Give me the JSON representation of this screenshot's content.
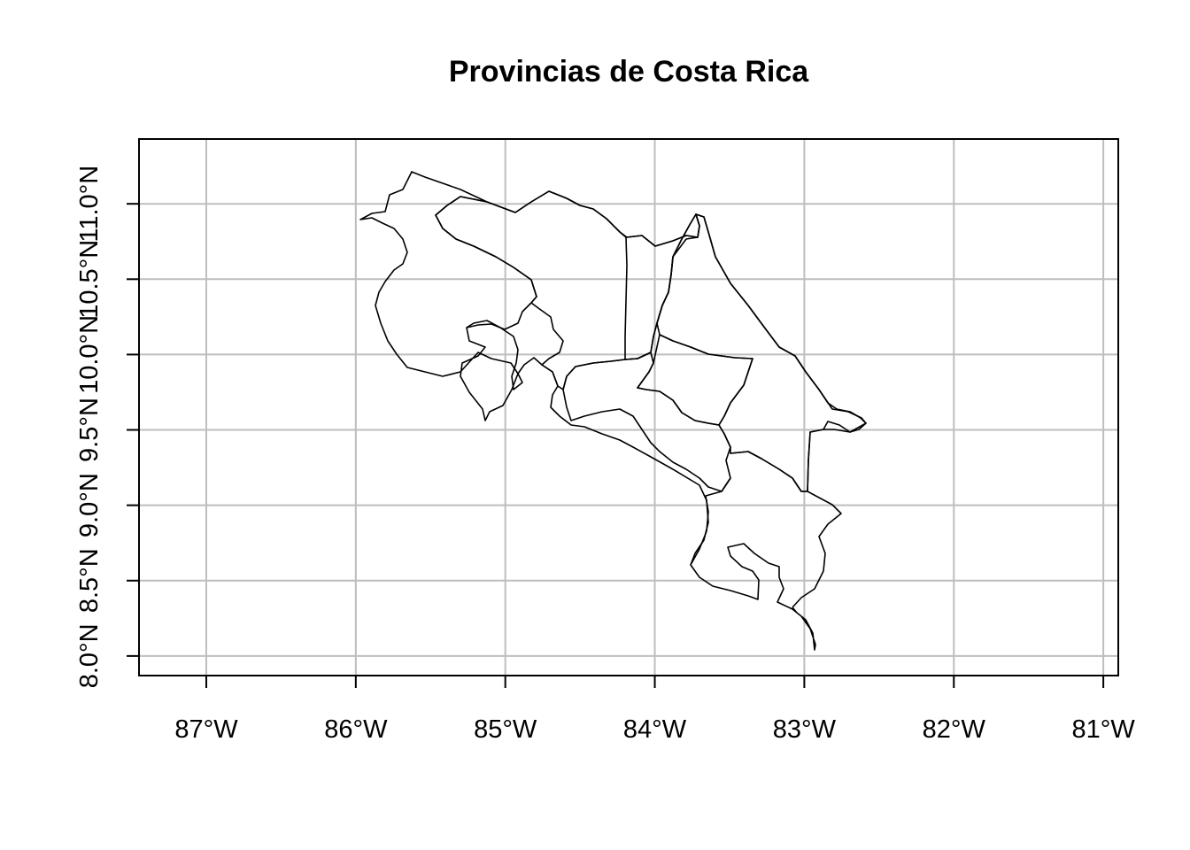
{
  "chart_data": {
    "type": "map",
    "title": "Provincias de Costa Rica",
    "xlabel": "",
    "ylabel": "",
    "x_ticks": [
      {
        "value": -87,
        "label": "87°W"
      },
      {
        "value": -86,
        "label": "86°W"
      },
      {
        "value": -85,
        "label": "85°W"
      },
      {
        "value": -84,
        "label": "84°W"
      },
      {
        "value": -83,
        "label": "83°W"
      },
      {
        "value": -82,
        "label": "82°W"
      },
      {
        "value": -81,
        "label": "81°W"
      }
    ],
    "y_ticks": [
      {
        "value": 8.0,
        "label": "8.0°N"
      },
      {
        "value": 8.5,
        "label": "8.5°N"
      },
      {
        "value": 9.0,
        "label": "9.0°N"
      },
      {
        "value": 9.5,
        "label": "9.5°N"
      },
      {
        "value": 10.0,
        "label": "10.0°N"
      },
      {
        "value": 10.5,
        "label": "10.5°N"
      },
      {
        "value": 11.0,
        "label": "11.0°N"
      }
    ],
    "xlim": [
      -87.45,
      -80.9
    ],
    "ylim": [
      7.87,
      11.43
    ],
    "grid": true,
    "legend": "none",
    "line_color": "#000000",
    "grid_color": "#bebebe"
  }
}
